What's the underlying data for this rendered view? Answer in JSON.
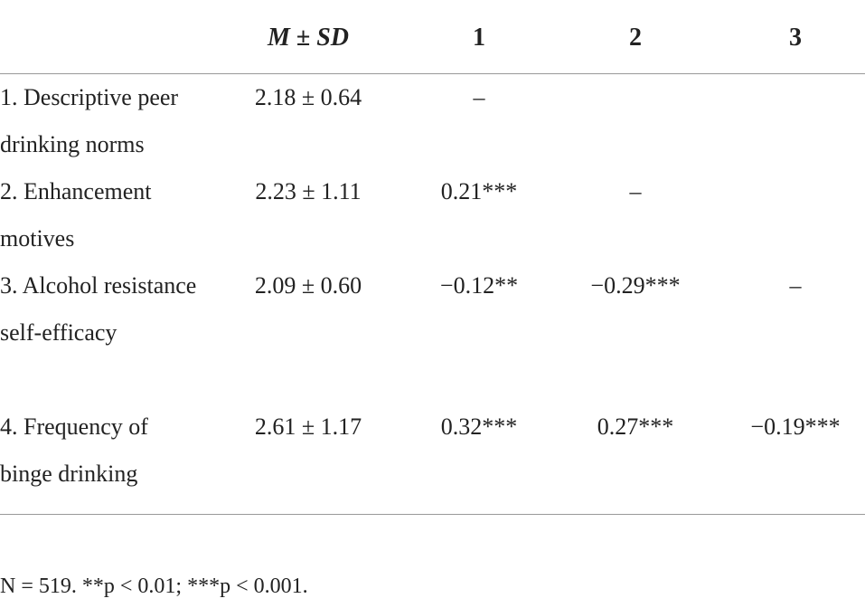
{
  "table": {
    "headers": [
      "M ± SD",
      "1",
      "2",
      "3"
    ],
    "rows": [
      [
        "1. Descriptive peer drinking norms",
        "2.18 ± 0.64",
        "–"
      ],
      [
        "2. Enhancement motives",
        "2.23 ± 1.11",
        "0.21***",
        "–"
      ],
      [
        "3. Alcohol resistance self-efficacy",
        "2.09 ± 0.60",
        "−0.12**",
        "−0.29***",
        "–"
      ],
      [
        "4. Frequency of binge drinking",
        "2.61 ± 1.17",
        "0.32***",
        "0.27***",
        "−0.19***"
      ]
    ],
    "note": "N = 519. **p < 0.01; ***p < 0.001."
  }
}
